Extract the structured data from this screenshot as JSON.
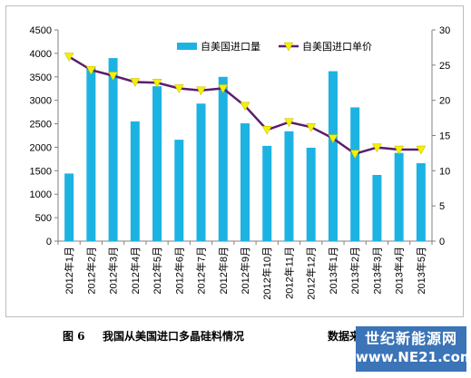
{
  "chart_data": {
    "type": "bar",
    "categories": [
      "2012年1月",
      "2012年2月",
      "2012年3月",
      "2012年4月",
      "2012年5月",
      "2012年6月",
      "2012年7月",
      "2012年8月",
      "2012年9月",
      "2012年10月",
      "2012年11月",
      "2012年12月",
      "2013年1月",
      "2013年2月",
      "2013年3月",
      "2013年4月",
      "2013年5月"
    ],
    "series": [
      {
        "name": "自美国进口量",
        "type": "bar",
        "axis": "left",
        "color": "#1cb3e3",
        "values": [
          1440,
          3700,
          3900,
          2550,
          3300,
          2160,
          2930,
          3500,
          2510,
          2030,
          2340,
          1990,
          3620,
          2850,
          1410,
          1880,
          1660
        ]
      },
      {
        "name": "自美国进口单价",
        "type": "line",
        "axis": "right",
        "color": "#5a1e6e",
        "marker_color": "#f2f200",
        "values": [
          26.2,
          24.3,
          23.5,
          22.6,
          22.5,
          21.7,
          21.4,
          21.7,
          19.2,
          15.8,
          16.9,
          16.2,
          14.6,
          12.4,
          13.3,
          13.0,
          13.0
        ]
      }
    ],
    "y_left": {
      "min": 0,
      "max": 4500,
      "step": 500,
      "ticks": [
        "0",
        "500",
        "1000",
        "1500",
        "2000",
        "2500",
        "3000",
        "3500",
        "4000",
        "4500"
      ]
    },
    "y_right": {
      "min": 0,
      "max": 30,
      "step": 5,
      "ticks": [
        "0",
        "5",
        "10",
        "15",
        "20",
        "25",
        "30"
      ]
    },
    "legend_position": "top-right",
    "grid": false
  },
  "caption": {
    "figure_no": "图 6",
    "title": "我国从美国进口多晶硅料情况",
    "source_label": "数据来源：海关"
  },
  "watermark": {
    "line1": "世纪新能源网",
    "line2": "www.NE21.com"
  }
}
